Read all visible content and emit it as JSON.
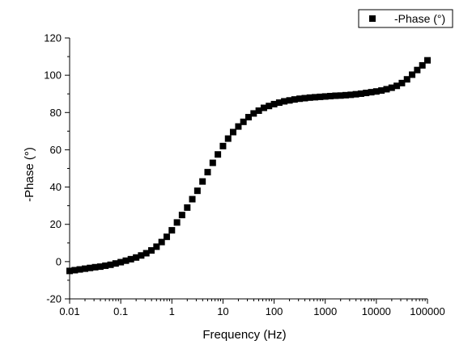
{
  "chart_data": {
    "type": "scatter",
    "xscale": "log",
    "xlabel": "Frequency (Hz)",
    "ylabel": "-Phase (°)",
    "xlim": [
      0.01,
      100000
    ],
    "ylim": [
      -20,
      120
    ],
    "x_ticks": [
      0.01,
      0.1,
      1,
      10,
      100,
      1000,
      10000,
      100000
    ],
    "x_tick_labels": [
      "0.01",
      "0.1",
      "1",
      "10",
      "100",
      "1000",
      "10000",
      "100000"
    ],
    "y_ticks": [
      -20,
      0,
      20,
      40,
      60,
      80,
      100,
      120
    ],
    "y_tick_labels": [
      "-20",
      "0",
      "20",
      "40",
      "60",
      "80",
      "100",
      "120"
    ],
    "grid": false,
    "legend": {
      "position": "top-right",
      "marker": "square"
    },
    "series": [
      {
        "name": "-Phase (°)",
        "color": "#000000",
        "marker": "square",
        "points": [
          [
            0.01,
            -5
          ],
          [
            0.0126,
            -4.6
          ],
          [
            0.0158,
            -4.2
          ],
          [
            0.02,
            -3.8
          ],
          [
            0.0251,
            -3.4
          ],
          [
            0.0316,
            -3.0
          ],
          [
            0.0398,
            -2.7
          ],
          [
            0.0501,
            -2.2
          ],
          [
            0.0631,
            -1.7
          ],
          [
            0.0794,
            -1.0
          ],
          [
            0.1,
            -0.3
          ],
          [
            0.126,
            0.5
          ],
          [
            0.158,
            1.3
          ],
          [
            0.2,
            2.2
          ],
          [
            0.251,
            3.3
          ],
          [
            0.316,
            4.5
          ],
          [
            0.398,
            6.0
          ],
          [
            0.501,
            8.0
          ],
          [
            0.631,
            10.5
          ],
          [
            0.794,
            13.3
          ],
          [
            1.0,
            16.8
          ],
          [
            1.26,
            21
          ],
          [
            1.58,
            25
          ],
          [
            2.0,
            29
          ],
          [
            2.51,
            33.5
          ],
          [
            3.16,
            38
          ],
          [
            3.98,
            43
          ],
          [
            5.01,
            48
          ],
          [
            6.31,
            53
          ],
          [
            7.94,
            57.5
          ],
          [
            10.0,
            62
          ],
          [
            12.6,
            66
          ],
          [
            15.8,
            69.5
          ],
          [
            20.0,
            72.5
          ],
          [
            25.1,
            75
          ],
          [
            31.6,
            77.5
          ],
          [
            39.8,
            79.5
          ],
          [
            50.1,
            81
          ],
          [
            63.1,
            82.5
          ],
          [
            79.4,
            83.5
          ],
          [
            100,
            84.5
          ],
          [
            126,
            85.3
          ],
          [
            158,
            86
          ],
          [
            200,
            86.5
          ],
          [
            251,
            87
          ],
          [
            316,
            87.4
          ],
          [
            398,
            87.7
          ],
          [
            501,
            88
          ],
          [
            631,
            88.2
          ],
          [
            794,
            88.4
          ],
          [
            1000,
            88.6
          ],
          [
            1259,
            88.8
          ],
          [
            1585,
            89
          ],
          [
            1995,
            89.1
          ],
          [
            2512,
            89.3
          ],
          [
            3162,
            89.5
          ],
          [
            3981,
            89.8
          ],
          [
            5012,
            90.1
          ],
          [
            6310,
            90.5
          ],
          [
            7943,
            90.9
          ],
          [
            10000,
            91.3
          ],
          [
            12589,
            91.8
          ],
          [
            15849,
            92.5
          ],
          [
            19953,
            93.3
          ],
          [
            25119,
            94.3
          ],
          [
            31623,
            95.8
          ],
          [
            39811,
            97.8
          ],
          [
            50119,
            100.3
          ],
          [
            63096,
            102.8
          ],
          [
            79433,
            105.3
          ],
          [
            100000,
            108
          ]
        ]
      }
    ]
  }
}
